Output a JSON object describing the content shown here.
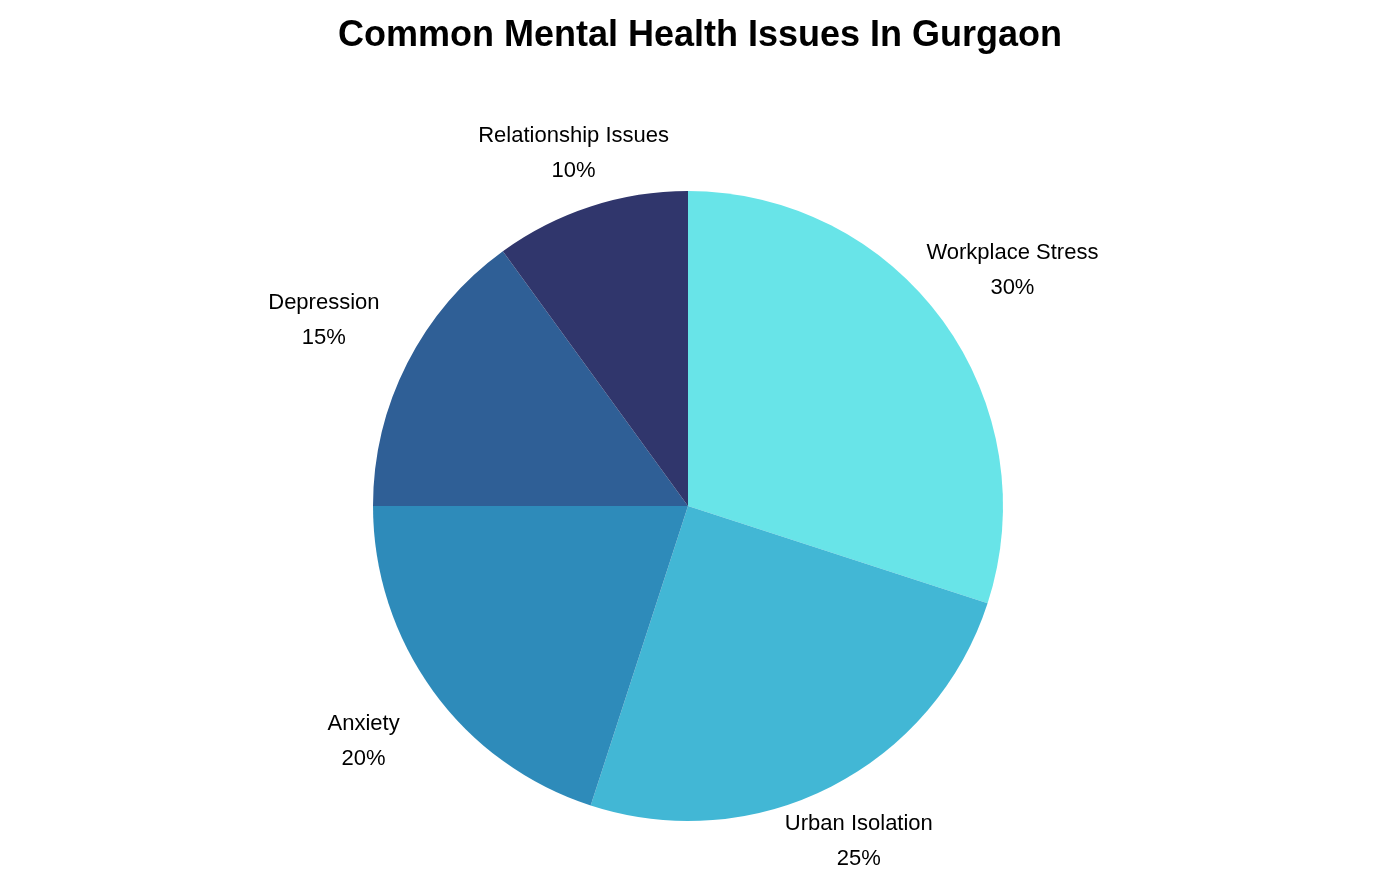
{
  "chart_data": {
    "type": "pie",
    "title": "Common Mental Health Issues In Gurgaon",
    "categories": [
      "Workplace Stress",
      "Urban Isolation",
      "Anxiety",
      "Depression",
      "Relationship Issues"
    ],
    "values": [
      30,
      25,
      20,
      15,
      10
    ],
    "value_labels": [
      "30%",
      "25%",
      "20%",
      "15%",
      "10%"
    ],
    "colors": [
      "#68e4e8",
      "#42b7d5",
      "#2e8bba",
      "#2f5f96",
      "#30366c"
    ],
    "data_labels": true
  }
}
